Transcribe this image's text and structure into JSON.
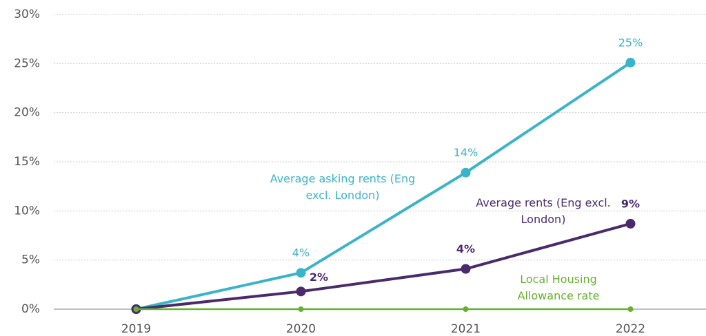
{
  "chart_data": {
    "type": "line",
    "categories": [
      "2019",
      "2020",
      "2021",
      "2022"
    ],
    "series": [
      {
        "name": "Average asking rents (Eng excl. London)",
        "color": "#3bb3c8",
        "values": [
          0,
          3.7,
          13.9,
          25.1
        ],
        "value_labels": [
          null,
          "4%",
          "14%",
          "25%"
        ]
      },
      {
        "name": "Average rents (Eng excl. London)",
        "color": "#4b2a6b",
        "values": [
          0,
          1.8,
          4.1,
          8.7
        ],
        "value_labels": [
          null,
          "2%",
          "4%",
          "9%"
        ]
      },
      {
        "name": "Local Housing Allowance rate",
        "color": "#66b22e",
        "values": [
          0,
          0,
          0,
          0
        ]
      }
    ],
    "ylim": [
      0,
      30
    ],
    "yticks": [
      {
        "value": 0,
        "label": "0%"
      },
      {
        "value": 5,
        "label": "5%"
      },
      {
        "value": 10,
        "label": "10%"
      },
      {
        "value": 15,
        "label": "15%"
      },
      {
        "value": 20,
        "label": "20%"
      },
      {
        "value": 25,
        "label": "25%"
      },
      {
        "value": 30,
        "label": "30%"
      }
    ],
    "grid": true
  }
}
